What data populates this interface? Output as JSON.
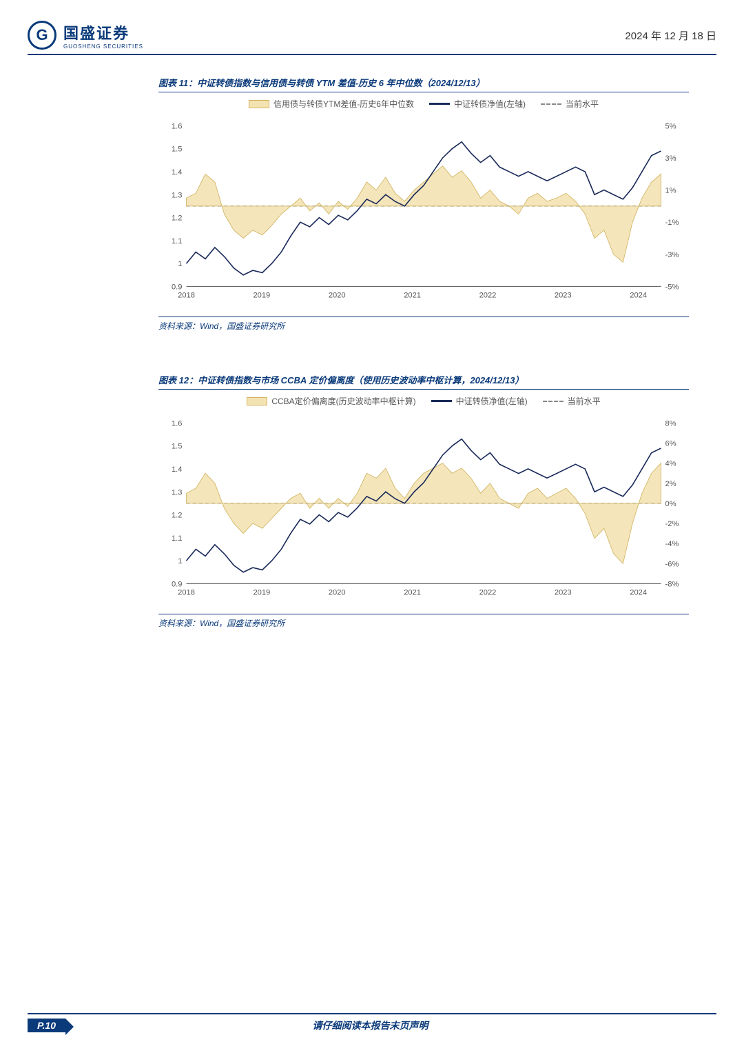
{
  "header": {
    "logo_cn": "国盛证券",
    "logo_en": "GUOSHENG SECURITIES",
    "logo_glyph": "G",
    "date": "2024 年 12 月 18 日"
  },
  "footer": {
    "page": "P.10",
    "note": "请仔细阅读本报告末页声明"
  },
  "chart11": {
    "title": "图表 11：中证转债指数与信用债与转债 YTM 差值-历史 6 年中位数（2024/12/13）",
    "source": "资料来源：Wind，国盛证券研究所",
    "legend": [
      "信用债与转债YTM差值-历史6年中位数",
      "中证转债净值(左轴)",
      "当前水平"
    ],
    "type": "line+area",
    "x_ticks": [
      "2018",
      "2019",
      "2020",
      "2021",
      "2022",
      "2023",
      "2024"
    ],
    "y_left": {
      "min": 0.9,
      "max": 1.6,
      "step": 0.1,
      "labels": [
        "0.9",
        "1",
        "1.1",
        "1.2",
        "1.3",
        "1.4",
        "1.5",
        "1.6"
      ]
    },
    "y_right": {
      "min": -5,
      "max": 5,
      "step": 2,
      "labels": [
        "-5%",
        "-3%",
        "-1%",
        "1%",
        "3%",
        "5%"
      ]
    },
    "colors": {
      "area": "#f3e3b3",
      "area_stroke": "#c9a94a",
      "navy_line": "#1a2a5a",
      "dash_line": "#888888",
      "grid": "#d9d9d9",
      "bg": "#ffffff",
      "axis_text": "#555555"
    },
    "line_width": 1.6,
    "ref_left": 1.25,
    "navy_series": [
      [
        0.0,
        1.0
      ],
      [
        0.02,
        1.05
      ],
      [
        0.04,
        1.02
      ],
      [
        0.06,
        1.07
      ],
      [
        0.08,
        1.03
      ],
      [
        0.1,
        0.98
      ],
      [
        0.12,
        0.95
      ],
      [
        0.14,
        0.97
      ],
      [
        0.16,
        0.96
      ],
      [
        0.18,
        1.0
      ],
      [
        0.2,
        1.05
      ],
      [
        0.22,
        1.12
      ],
      [
        0.24,
        1.18
      ],
      [
        0.26,
        1.16
      ],
      [
        0.28,
        1.2
      ],
      [
        0.3,
        1.17
      ],
      [
        0.32,
        1.21
      ],
      [
        0.34,
        1.19
      ],
      [
        0.36,
        1.23
      ],
      [
        0.38,
        1.28
      ],
      [
        0.4,
        1.26
      ],
      [
        0.42,
        1.3
      ],
      [
        0.44,
        1.27
      ],
      [
        0.46,
        1.25
      ],
      [
        0.48,
        1.3
      ],
      [
        0.5,
        1.34
      ],
      [
        0.52,
        1.4
      ],
      [
        0.54,
        1.46
      ],
      [
        0.56,
        1.5
      ],
      [
        0.58,
        1.53
      ],
      [
        0.6,
        1.48
      ],
      [
        0.62,
        1.44
      ],
      [
        0.64,
        1.47
      ],
      [
        0.66,
        1.42
      ],
      [
        0.68,
        1.4
      ],
      [
        0.7,
        1.38
      ],
      [
        0.72,
        1.4
      ],
      [
        0.74,
        1.38
      ],
      [
        0.76,
        1.36
      ],
      [
        0.78,
        1.38
      ],
      [
        0.8,
        1.4
      ],
      [
        0.82,
        1.42
      ],
      [
        0.84,
        1.4
      ],
      [
        0.86,
        1.3
      ],
      [
        0.88,
        1.32
      ],
      [
        0.9,
        1.3
      ],
      [
        0.92,
        1.28
      ],
      [
        0.94,
        1.33
      ],
      [
        0.96,
        1.4
      ],
      [
        0.98,
        1.47
      ],
      [
        1.0,
        1.49
      ]
    ],
    "area_series": [
      [
        0.0,
        0.5
      ],
      [
        0.02,
        0.8
      ],
      [
        0.04,
        2.0
      ],
      [
        0.06,
        1.5
      ],
      [
        0.08,
        -0.5
      ],
      [
        0.1,
        -1.5
      ],
      [
        0.12,
        -2.0
      ],
      [
        0.14,
        -1.5
      ],
      [
        0.16,
        -1.8
      ],
      [
        0.18,
        -1.2
      ],
      [
        0.2,
        -0.5
      ],
      [
        0.22,
        0.0
      ],
      [
        0.24,
        0.5
      ],
      [
        0.26,
        -0.3
      ],
      [
        0.28,
        0.2
      ],
      [
        0.3,
        -0.5
      ],
      [
        0.32,
        0.3
      ],
      [
        0.34,
        -0.2
      ],
      [
        0.36,
        0.5
      ],
      [
        0.38,
        1.5
      ],
      [
        0.4,
        1.0
      ],
      [
        0.42,
        1.8
      ],
      [
        0.44,
        0.8
      ],
      [
        0.46,
        0.3
      ],
      [
        0.48,
        1.0
      ],
      [
        0.5,
        1.5
      ],
      [
        0.52,
        2.0
      ],
      [
        0.54,
        2.5
      ],
      [
        0.56,
        1.8
      ],
      [
        0.58,
        2.2
      ],
      [
        0.6,
        1.5
      ],
      [
        0.62,
        0.5
      ],
      [
        0.64,
        1.0
      ],
      [
        0.66,
        0.3
      ],
      [
        0.68,
        0.0
      ],
      [
        0.7,
        -0.5
      ],
      [
        0.72,
        0.5
      ],
      [
        0.74,
        0.8
      ],
      [
        0.76,
        0.3
      ],
      [
        0.78,
        0.5
      ],
      [
        0.8,
        0.8
      ],
      [
        0.82,
        0.3
      ],
      [
        0.84,
        -0.5
      ],
      [
        0.86,
        -2.0
      ],
      [
        0.88,
        -1.5
      ],
      [
        0.9,
        -3.0
      ],
      [
        0.92,
        -3.5
      ],
      [
        0.94,
        -1.0
      ],
      [
        0.96,
        0.5
      ],
      [
        0.98,
        1.5
      ],
      [
        1.0,
        2.0
      ]
    ]
  },
  "chart12": {
    "title": "图表 12：中证转债指数与市场 CCBA 定价偏离度（使用历史波动率中枢计算，2024/12/13）",
    "source": "资料来源：Wind，国盛证券研究所",
    "legend": [
      "CCBA定价偏离度(历史波动率中枢计算)",
      "中证转债净值(左轴)",
      "当前水平"
    ],
    "type": "line+area",
    "x_ticks": [
      "2018",
      "2019",
      "2020",
      "2021",
      "2022",
      "2023",
      "2024"
    ],
    "y_left": {
      "min": 0.9,
      "max": 1.6,
      "step": 0.1,
      "labels": [
        "0.9",
        "1",
        "1.1",
        "1.2",
        "1.3",
        "1.4",
        "1.5",
        "1.6"
      ]
    },
    "y_right": {
      "min": -8,
      "max": 8,
      "step": 2,
      "labels": [
        "-8%",
        "-6%",
        "-4%",
        "-2%",
        "0%",
        "2%",
        "4%",
        "6%",
        "8%"
      ]
    },
    "colors": {
      "area": "#f3e3b3",
      "area_stroke": "#c9a94a",
      "navy_line": "#1a2a5a",
      "dash_line": "#888888",
      "grid": "#d9d9d9",
      "bg": "#ffffff",
      "axis_text": "#555555"
    },
    "line_width": 1.6,
    "ref_left": 1.25,
    "navy_series": [
      [
        0.0,
        1.0
      ],
      [
        0.02,
        1.05
      ],
      [
        0.04,
        1.02
      ],
      [
        0.06,
        1.07
      ],
      [
        0.08,
        1.03
      ],
      [
        0.1,
        0.98
      ],
      [
        0.12,
        0.95
      ],
      [
        0.14,
        0.97
      ],
      [
        0.16,
        0.96
      ],
      [
        0.18,
        1.0
      ],
      [
        0.2,
        1.05
      ],
      [
        0.22,
        1.12
      ],
      [
        0.24,
        1.18
      ],
      [
        0.26,
        1.16
      ],
      [
        0.28,
        1.2
      ],
      [
        0.3,
        1.17
      ],
      [
        0.32,
        1.21
      ],
      [
        0.34,
        1.19
      ],
      [
        0.36,
        1.23
      ],
      [
        0.38,
        1.28
      ],
      [
        0.4,
        1.26
      ],
      [
        0.42,
        1.3
      ],
      [
        0.44,
        1.27
      ],
      [
        0.46,
        1.25
      ],
      [
        0.48,
        1.3
      ],
      [
        0.5,
        1.34
      ],
      [
        0.52,
        1.4
      ],
      [
        0.54,
        1.46
      ],
      [
        0.56,
        1.5
      ],
      [
        0.58,
        1.53
      ],
      [
        0.6,
        1.48
      ],
      [
        0.62,
        1.44
      ],
      [
        0.64,
        1.47
      ],
      [
        0.66,
        1.42
      ],
      [
        0.68,
        1.4
      ],
      [
        0.7,
        1.38
      ],
      [
        0.72,
        1.4
      ],
      [
        0.74,
        1.38
      ],
      [
        0.76,
        1.36
      ],
      [
        0.78,
        1.38
      ],
      [
        0.8,
        1.4
      ],
      [
        0.82,
        1.42
      ],
      [
        0.84,
        1.4
      ],
      [
        0.86,
        1.3
      ],
      [
        0.88,
        1.32
      ],
      [
        0.9,
        1.3
      ],
      [
        0.92,
        1.28
      ],
      [
        0.94,
        1.33
      ],
      [
        0.96,
        1.4
      ],
      [
        0.98,
        1.47
      ],
      [
        1.0,
        1.49
      ]
    ],
    "area_series": [
      [
        0.0,
        1.0
      ],
      [
        0.02,
        1.5
      ],
      [
        0.04,
        3.0
      ],
      [
        0.06,
        2.0
      ],
      [
        0.08,
        -0.5
      ],
      [
        0.1,
        -2.0
      ],
      [
        0.12,
        -3.0
      ],
      [
        0.14,
        -2.0
      ],
      [
        0.16,
        -2.5
      ],
      [
        0.18,
        -1.5
      ],
      [
        0.2,
        -0.5
      ],
      [
        0.22,
        0.5
      ],
      [
        0.24,
        1.0
      ],
      [
        0.26,
        -0.5
      ],
      [
        0.28,
        0.5
      ],
      [
        0.3,
        -0.5
      ],
      [
        0.32,
        0.5
      ],
      [
        0.34,
        -0.3
      ],
      [
        0.36,
        1.0
      ],
      [
        0.38,
        3.0
      ],
      [
        0.4,
        2.5
      ],
      [
        0.42,
        3.5
      ],
      [
        0.44,
        1.5
      ],
      [
        0.46,
        0.5
      ],
      [
        0.48,
        2.0
      ],
      [
        0.5,
        3.0
      ],
      [
        0.52,
        3.5
      ],
      [
        0.54,
        4.0
      ],
      [
        0.56,
        3.0
      ],
      [
        0.58,
        3.5
      ],
      [
        0.6,
        2.5
      ],
      [
        0.62,
        1.0
      ],
      [
        0.64,
        2.0
      ],
      [
        0.66,
        0.5
      ],
      [
        0.68,
        0.0
      ],
      [
        0.7,
        -0.5
      ],
      [
        0.72,
        1.0
      ],
      [
        0.74,
        1.5
      ],
      [
        0.76,
        0.5
      ],
      [
        0.78,
        1.0
      ],
      [
        0.8,
        1.5
      ],
      [
        0.82,
        0.5
      ],
      [
        0.84,
        -1.0
      ],
      [
        0.86,
        -3.5
      ],
      [
        0.88,
        -2.5
      ],
      [
        0.9,
        -5.0
      ],
      [
        0.92,
        -6.0
      ],
      [
        0.94,
        -2.0
      ],
      [
        0.96,
        1.0
      ],
      [
        0.98,
        3.0
      ],
      [
        1.0,
        4.0
      ]
    ]
  }
}
